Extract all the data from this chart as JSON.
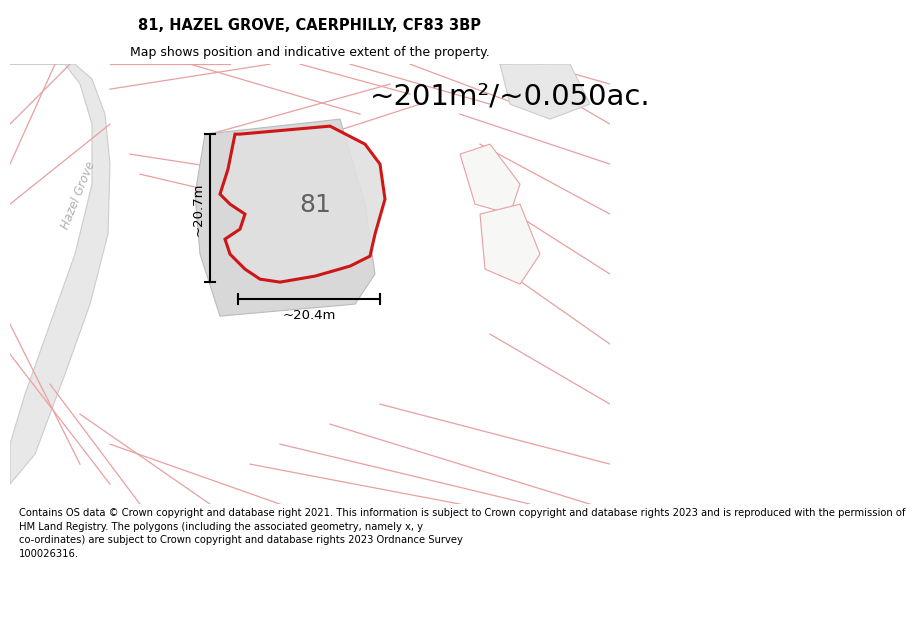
{
  "title_line1": "81, HAZEL GROVE, CAERPHILLY, CF83 3BP",
  "title_line2": "Map shows position and indicative extent of the property.",
  "area_label": "~201m²/~0.050ac.",
  "plot_number": "81",
  "dim_vertical": "~20.7m",
  "dim_horizontal": "~20.4m",
  "street_label": "Hazel Grove",
  "footer_text": "Contains OS data © Crown copyright and database right 2021. This information is subject to Crown copyright and database rights 2023 and is reproduced with the permission of\nHM Land Registry. The polygons (including the associated geometry, namely x, y\nco-ordinates) are subject to Crown copyright and database rights 2023 Ordnance Survey\n100026316.",
  "bg_color": "#f7f7f5",
  "road_color": "#e8e8e8",
  "road_edge": "#cccccc",
  "plot_fill": "#d8d8d8",
  "plot_edge": "#cc0000",
  "neighbor_edge": "#e8a0a0",
  "building_fill": "#d5d5d5",
  "building_edge": "#bbbbbb",
  "title_fontsize": 10.5,
  "subtitle_fontsize": 9,
  "area_fontsize": 21,
  "plot_num_fontsize": 18,
  "dim_fontsize": 9.5,
  "street_fontsize": 8.5,
  "footer_fontsize": 7.2
}
